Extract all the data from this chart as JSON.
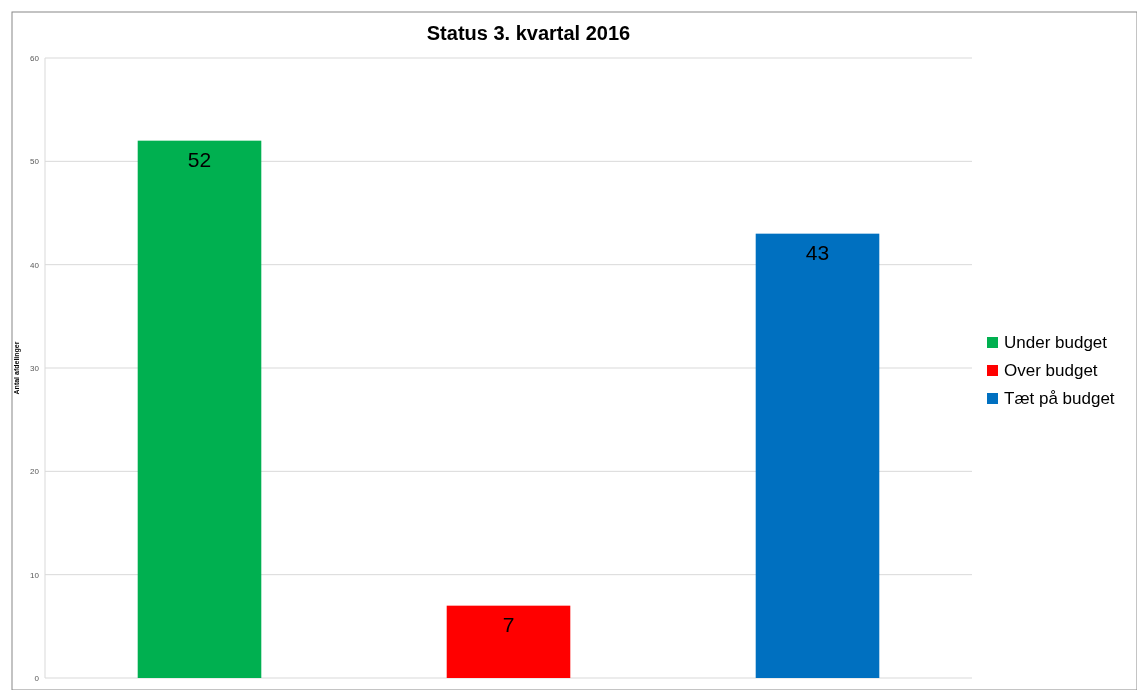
{
  "chart_data": {
    "type": "bar",
    "title": "Status 3. kvartal 2016",
    "ylabel": "Antal afdelinger",
    "categories": [
      null,
      null,
      null
    ],
    "series": [
      {
        "name": "Under budget",
        "color": "#00b050",
        "values": [
          52,
          null,
          null
        ]
      },
      {
        "name": "Over budget",
        "color": "#ff0000",
        "values": [
          null,
          7,
          null
        ]
      },
      {
        "name": "Tæt på budget",
        "color": "#0070c0",
        "values": [
          null,
          null,
          43
        ]
      }
    ],
    "ylim": [
      0,
      60
    ],
    "yticks": [
      0,
      10,
      20,
      30,
      40,
      50,
      60
    ],
    "grid": "y",
    "legend": "right",
    "data_labels": true
  }
}
